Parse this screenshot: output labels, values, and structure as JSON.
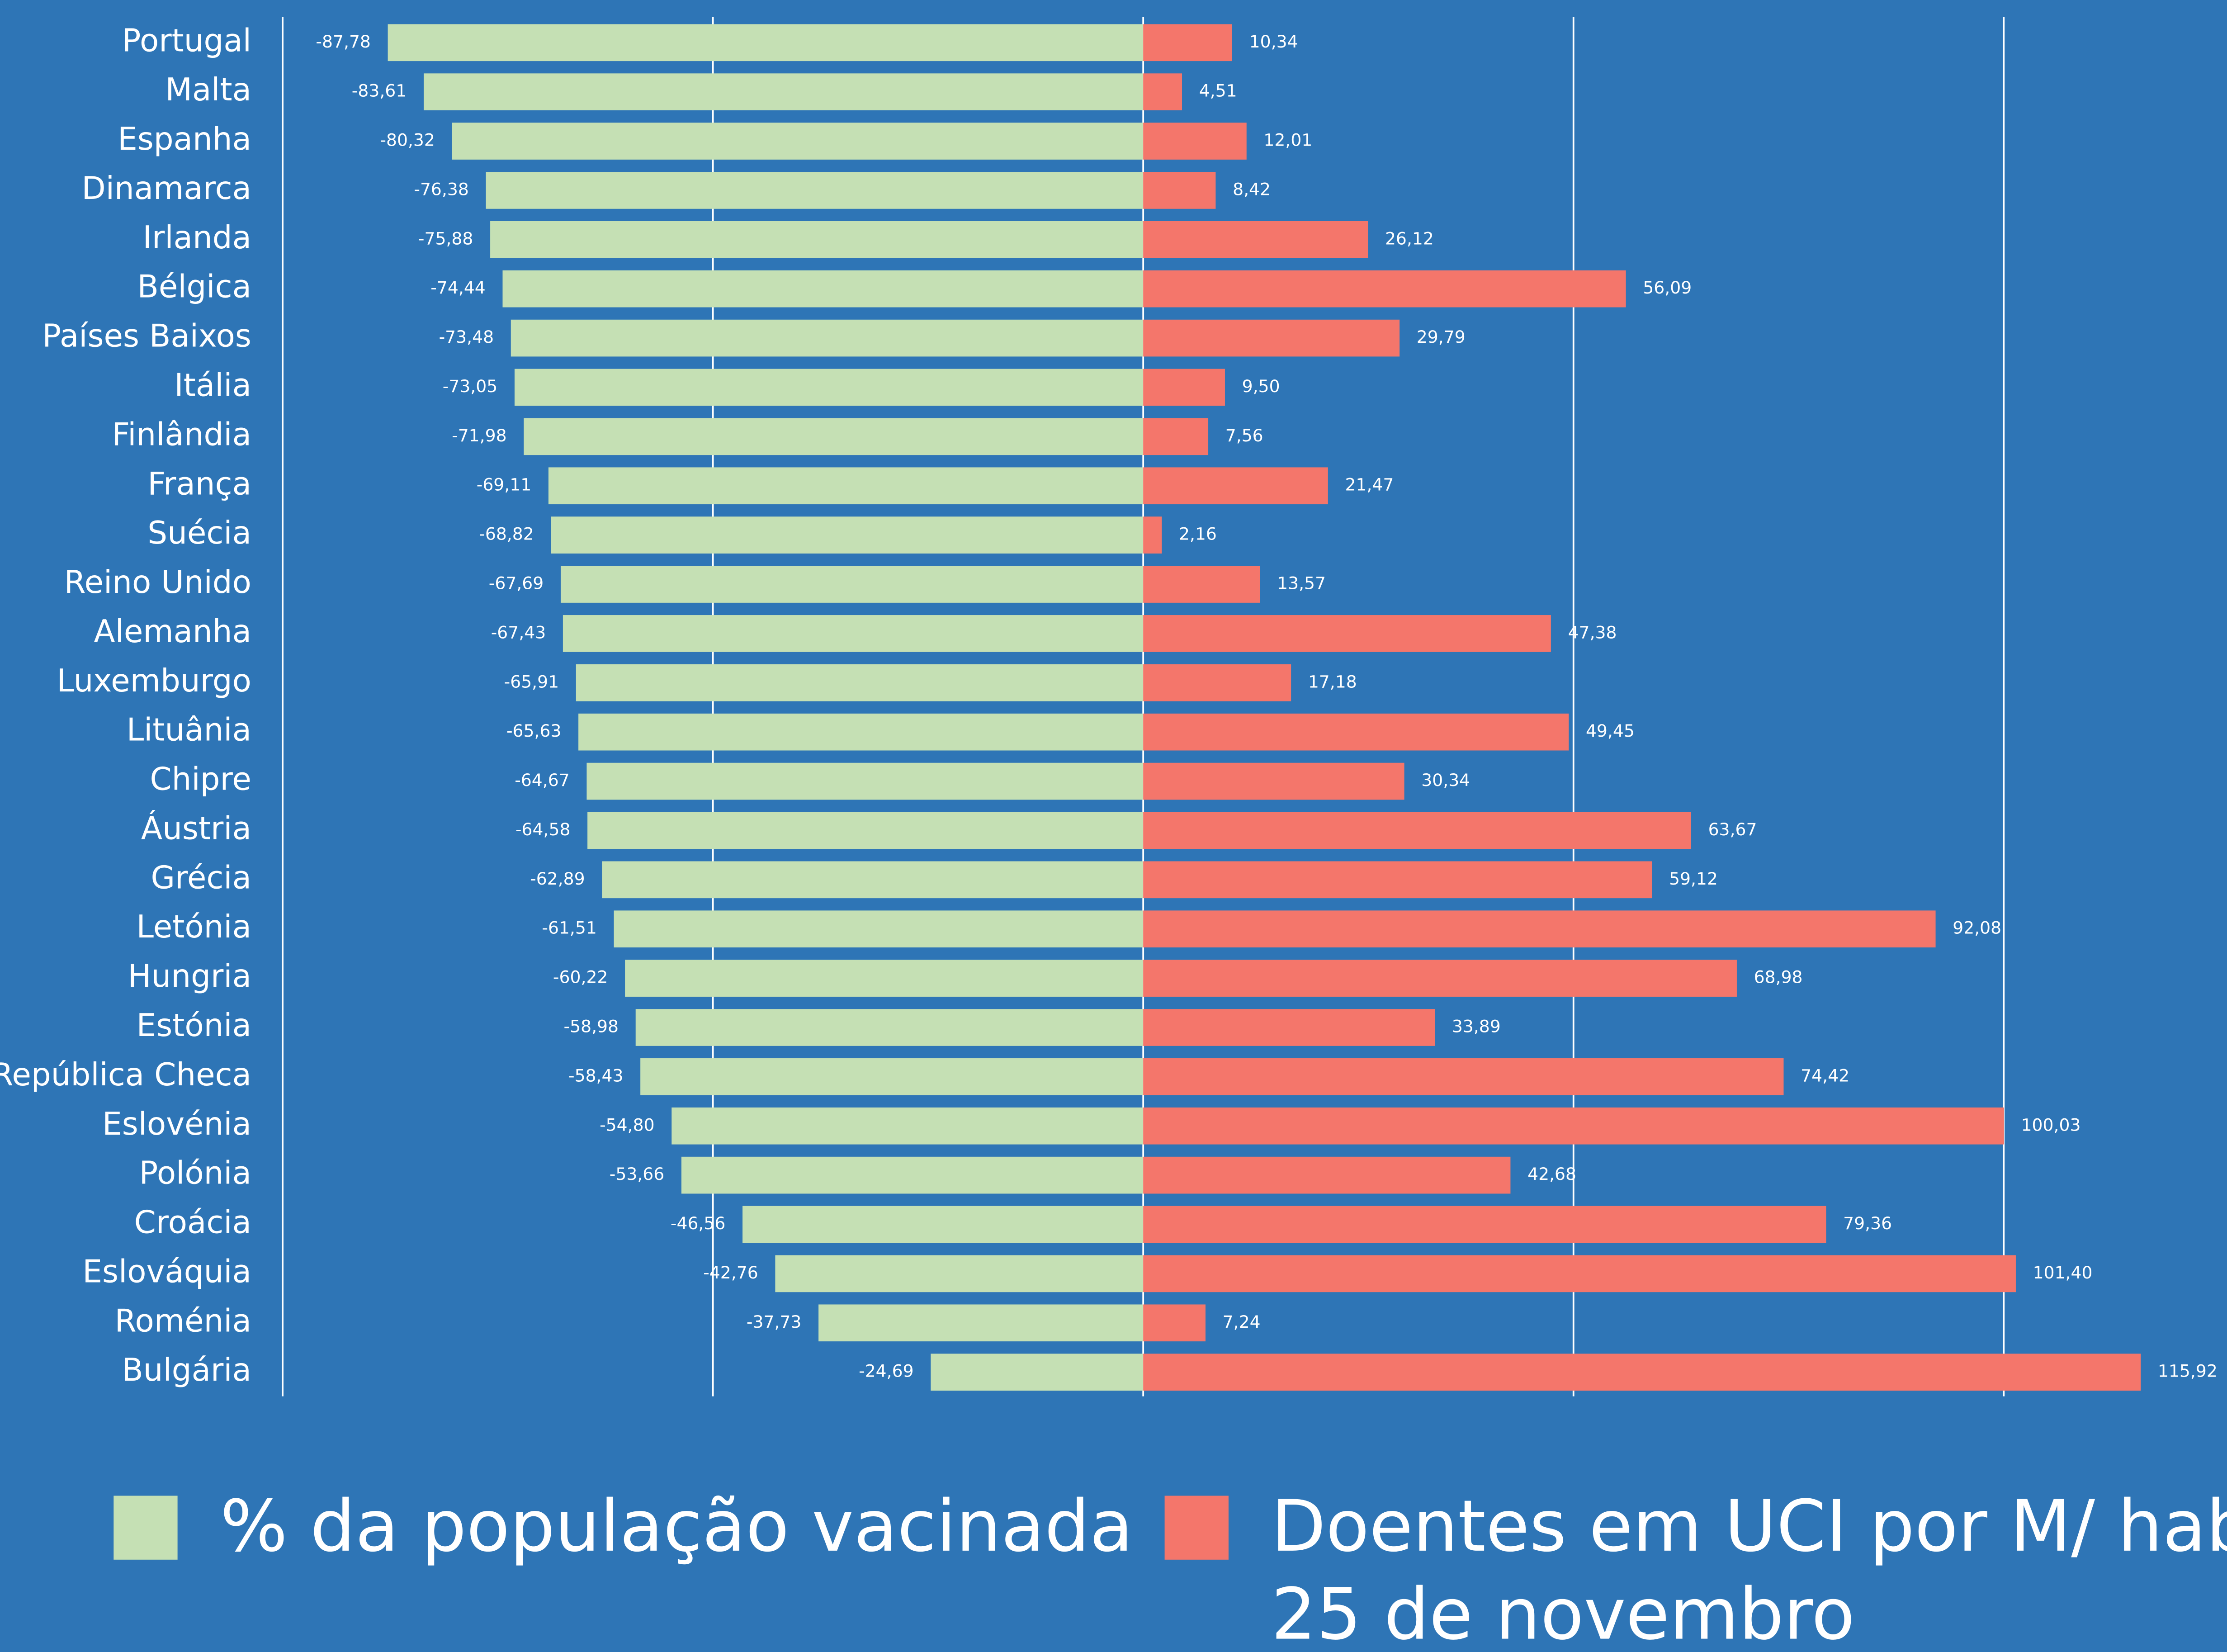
{
  "chart_data": {
    "type": "bar",
    "orientation": "horizontal",
    "categories": [
      "Portugal",
      "Malta",
      "Espanha",
      "Dinamarca",
      "Irlanda",
      "Bélgica",
      "Países Baixos",
      "Itália",
      "Finlândia",
      "França",
      "Suécia",
      "Reino Unido",
      "Alemanha",
      "Luxemburgo",
      "Lituânia",
      "Chipre",
      "Áustria",
      "Grécia",
      "Letónia",
      "Hungria",
      "Estónia",
      "República Checa",
      "Eslovénia",
      "Polónia",
      "Croácia",
      "Eslováquia",
      "Roménia",
      "Bulgária"
    ],
    "series": [
      {
        "name": "% da população vacinada",
        "color": "#c5e0b4",
        "values": [
          -87.78,
          -83.61,
          -80.32,
          -76.38,
          -75.88,
          -74.44,
          -73.48,
          -73.05,
          -71.98,
          -69.11,
          -68.82,
          -67.69,
          -67.43,
          -65.91,
          -65.63,
          -64.67,
          -64.58,
          -62.89,
          -61.51,
          -60.22,
          -58.98,
          -58.43,
          -54.8,
          -53.66,
          -46.56,
          -42.76,
          -37.73,
          -24.69
        ],
        "value_labels": [
          "-87,78",
          "-83,61",
          "-80,32",
          "-76,38",
          "-75,88",
          "-74,44",
          "-73,48",
          "-73,05",
          "-71,98",
          "-69,11",
          "-68,82",
          "-67,69",
          "-67,43",
          "-65,91",
          "-65,63",
          "-64,67",
          "-64,58",
          "-62,89",
          "-61,51",
          "-60,22",
          "-58,98",
          "-58,43",
          "-54,80",
          "-53,66",
          "-46,56",
          "-42,76",
          "-37,73",
          "-24,69"
        ]
      },
      {
        "name": "Doentes em UCI por M/ hab.",
        "color": "#f4766b",
        "values": [
          10.34,
          4.51,
          12.01,
          8.42,
          26.12,
          56.09,
          29.79,
          9.5,
          7.56,
          21.47,
          2.16,
          13.57,
          47.38,
          17.18,
          49.45,
          30.34,
          63.67,
          59.12,
          92.08,
          68.98,
          33.89,
          74.42,
          100.03,
          42.68,
          79.36,
          101.4,
          7.24,
          115.92
        ],
        "value_labels": [
          "10,34",
          "4,51",
          "12,01",
          "8,42",
          "26,12",
          "56,09",
          "29,79",
          "9,50",
          "7,56",
          "21,47",
          "2,16",
          "13,57",
          "47,38",
          "17,18",
          "49,45",
          "30,34",
          "63,67",
          "59,12",
          "92,08",
          "68,98",
          "33,89",
          "74,42",
          "100,03",
          "42,68",
          "79,36",
          "101,40",
          "7,24",
          "115,92"
        ]
      }
    ],
    "legend_note": "25 de novembro",
    "xlim": [
      -100,
      120
    ],
    "xticks": [
      -100,
      -50,
      0,
      50,
      100
    ],
    "grid": true,
    "legend": "bottom"
  }
}
